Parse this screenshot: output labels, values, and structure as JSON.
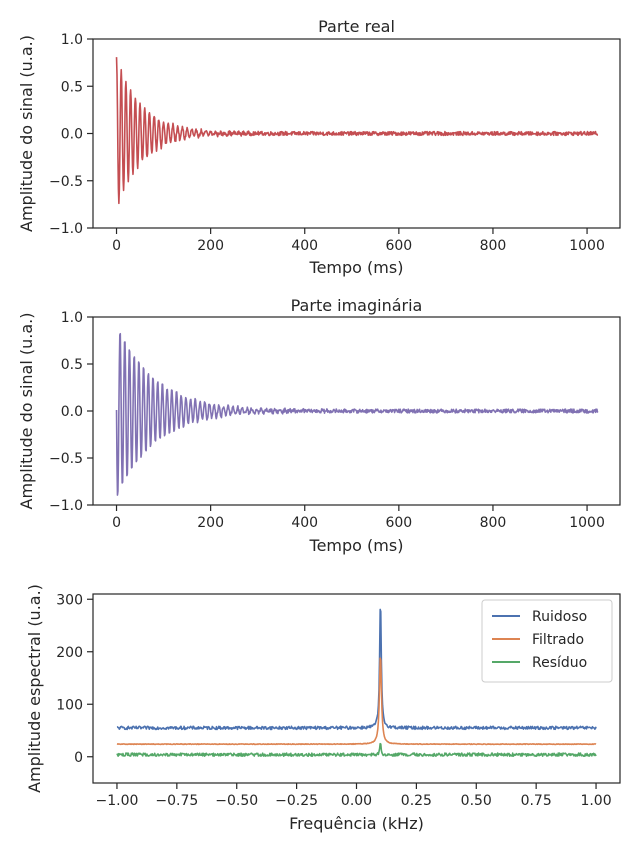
{
  "colors": {
    "real": "#c44e52",
    "imag": "#8172b3",
    "noisy": "#4c72b0",
    "filtered": "#dd8452",
    "residual": "#55a868",
    "axes": "#262626"
  },
  "chart_data": [
    {
      "type": "line",
      "title": "Parte real",
      "xlabel": "Tempo (ms)",
      "ylabel": "Amplitude do sinal (u.a.)",
      "xlim": [
        -50,
        1070
      ],
      "ylim": [
        -1.0,
        1.0
      ],
      "xticks": [
        0,
        200,
        400,
        600,
        800,
        1000
      ],
      "xticklabels": [
        "0",
        "200",
        "400",
        "600",
        "800",
        "1000"
      ],
      "yticks": [
        -1.0,
        -0.5,
        0.0,
        0.5,
        1.0
      ],
      "yticklabels": [
        "−1.0",
        "−0.5",
        "0.0",
        "0.5",
        "1.0"
      ],
      "grid": false,
      "series": [
        {
          "color": "#c44e52",
          "signal": {
            "kind": "fid",
            "t_end": 1024,
            "n": 1024,
            "amp": 0.8,
            "decay_ms": 55,
            "freq_per_ms": 0.1,
            "phase": 0.0,
            "noise": 0.02
          }
        }
      ]
    },
    {
      "type": "line",
      "title": "Parte imaginária",
      "xlabel": "Tempo (ms)",
      "ylabel": "Amplitude do sinal (u.a.)",
      "xlim": [
        -50,
        1070
      ],
      "ylim": [
        -1.0,
        1.0
      ],
      "xticks": [
        0,
        200,
        400,
        600,
        800,
        1000
      ],
      "xticklabels": [
        "0",
        "200",
        "400",
        "600",
        "800",
        "1000"
      ],
      "yticks": [
        -1.0,
        -0.5,
        0.0,
        0.5,
        1.0
      ],
      "yticklabels": [
        "−1.0",
        "−0.5",
        "0.0",
        "0.5",
        "1.0"
      ],
      "grid": false,
      "series": [
        {
          "color": "#8172b3",
          "signal": {
            "kind": "fid",
            "t_end": 1024,
            "n": 1024,
            "amp": 0.95,
            "decay_ms": 80,
            "freq_per_ms": 0.1,
            "phase": 1.5708,
            "noise": 0.02
          }
        }
      ]
    },
    {
      "type": "line",
      "xlabel": "Frequência (kHz)",
      "ylabel": "Amplitude espectral (u.a.)",
      "xlim": [
        -1.1,
        1.1
      ],
      "ylim": [
        -50,
        310
      ],
      "xticks": [
        -1.0,
        -0.75,
        -0.5,
        -0.25,
        0.0,
        0.25,
        0.5,
        0.75,
        1.0
      ],
      "xticklabels": [
        "−1.00",
        "−0.75",
        "−0.50",
        "−0.25",
        "0.00",
        "0.25",
        "0.50",
        "0.75",
        "1.00"
      ],
      "yticks": [
        0,
        100,
        200,
        300
      ],
      "yticklabels": [
        "0",
        "100",
        "200",
        "300"
      ],
      "grid": false,
      "legend": "top-right",
      "series": [
        {
          "name": "Ruidoso",
          "color": "#4c72b0",
          "signal": {
            "kind": "spectrum",
            "x0": -1.0,
            "x1": 1.0,
            "n": 800,
            "base": 55,
            "noise": 3,
            "peak_x": 0.1,
            "peak_h": 245,
            "peak_w": 0.004
          }
        },
        {
          "name": "Filtrado",
          "color": "#dd8452",
          "signal": {
            "kind": "spectrum",
            "x0": -1.0,
            "x1": 1.0,
            "n": 800,
            "base": 24,
            "noise": 0.6,
            "peak_x": 0.1,
            "peak_h": 172,
            "peak_w": 0.005
          }
        },
        {
          "name": "Resíduo",
          "color": "#55a868",
          "signal": {
            "kind": "spectrum",
            "x0": -1.0,
            "x1": 1.0,
            "n": 800,
            "base": 4,
            "noise": 3,
            "peak_x": 0.1,
            "peak_h": 22,
            "peak_w": 0.003
          }
        }
      ]
    }
  ]
}
